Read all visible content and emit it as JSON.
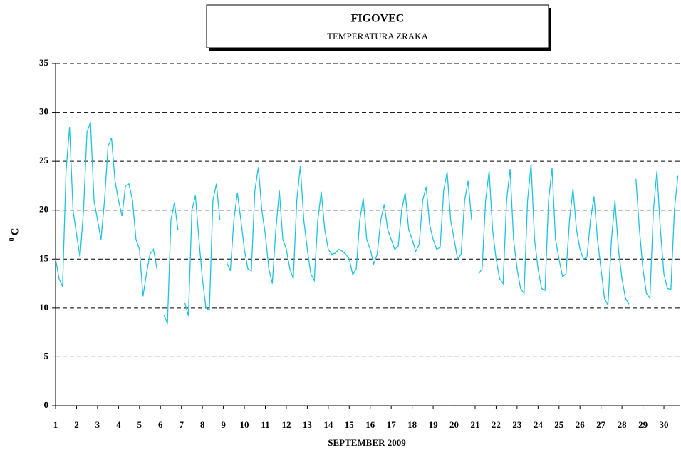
{
  "chart_data": {
    "type": "line",
    "title": "FIGOVEC",
    "subtitle": "TEMPERATURA ZRAKA",
    "ylabel_sup": "0",
    "ylabel": "C",
    "xlabel": "SEPTEMBER 2009",
    "color": "#1ec4de",
    "grid": true,
    "xlim": [
      1,
      30.78
    ],
    "ylim": [
      0,
      35
    ],
    "xticks": [
      1,
      2,
      3,
      4,
      5,
      6,
      7,
      8,
      9,
      10,
      11,
      12,
      13,
      14,
      15,
      16,
      17,
      18,
      19,
      20,
      21,
      22,
      23,
      24,
      25,
      26,
      27,
      28,
      29,
      30
    ],
    "yticks": [
      0,
      5,
      10,
      15,
      20,
      25,
      30,
      35
    ],
    "x": [
      1,
      1.167,
      1.333,
      1.5,
      1.667,
      1.833,
      2,
      2.167,
      2.333,
      2.5,
      2.667,
      2.833,
      3,
      3.167,
      3.333,
      3.5,
      3.667,
      3.833,
      4,
      4.167,
      4.333,
      4.5,
      4.667,
      4.833,
      5,
      5.167,
      5.333,
      5.5,
      5.667,
      5.833,
      6,
      6.167,
      6.333,
      6.5,
      6.667,
      6.833,
      7,
      7.167,
      7.333,
      7.5,
      7.667,
      7.833,
      8,
      8.167,
      8.333,
      8.5,
      8.667,
      8.833,
      9,
      9.167,
      9.333,
      9.5,
      9.667,
      9.833,
      10,
      10.167,
      10.333,
      10.5,
      10.667,
      10.833,
      11,
      11.167,
      11.333,
      11.5,
      11.667,
      11.833,
      12,
      12.167,
      12.333,
      12.5,
      12.667,
      12.833,
      13,
      13.167,
      13.333,
      13.5,
      13.667,
      13.833,
      14,
      14.167,
      14.333,
      14.5,
      14.667,
      14.833,
      15,
      15.167,
      15.333,
      15.5,
      15.667,
      15.833,
      16,
      16.167,
      16.333,
      16.5,
      16.667,
      16.833,
      17,
      17.167,
      17.333,
      17.5,
      17.667,
      17.833,
      18,
      18.167,
      18.333,
      18.5,
      18.667,
      18.833,
      19,
      19.167,
      19.333,
      19.5,
      19.667,
      19.833,
      20,
      20.167,
      20.333,
      20.5,
      20.667,
      20.833,
      21,
      21.167,
      21.333,
      21.5,
      21.667,
      21.833,
      22,
      22.167,
      22.333,
      22.5,
      22.667,
      22.833,
      23,
      23.167,
      23.333,
      23.5,
      23.667,
      23.833,
      24,
      24.167,
      24.333,
      24.5,
      24.667,
      24.833,
      25,
      25.167,
      25.333,
      25.5,
      25.667,
      25.833,
      26,
      26.167,
      26.333,
      26.5,
      26.667,
      26.833,
      27,
      27.167,
      27.333,
      27.5,
      27.667,
      27.833,
      28,
      28.167,
      28.333,
      28.5,
      28.667,
      28.833,
      29,
      29.167,
      29.333,
      29.5,
      29.667,
      29.833,
      30,
      30.167,
      30.333,
      30.5,
      30.667
    ],
    "values": [
      15,
      13,
      12.2,
      24,
      28.5,
      20,
      17.5,
      15.2,
      20,
      28,
      29,
      21,
      19,
      17,
      21,
      26.5,
      27.4,
      23,
      21,
      19.4,
      22.5,
      22.7,
      21,
      17,
      16,
      11.2,
      13.5,
      15.5,
      16,
      14,
      null,
      9.3,
      8.4,
      19,
      20.8,
      18,
      null,
      10.5,
      9.2,
      20,
      21.5,
      17,
      13,
      10,
      9.8,
      21,
      22.7,
      19,
      null,
      14.6,
      13.8,
      19,
      21.8,
      19,
      16,
      14,
      13.8,
      22,
      24.4,
      20,
      17.5,
      14,
      12.5,
      18,
      22,
      17,
      16,
      14,
      13,
      21,
      24.5,
      19,
      16,
      13.5,
      12.8,
      19,
      21.9,
      18,
      16,
      15.5,
      15.6,
      16,
      15.8,
      15.5,
      15,
      13.4,
      14,
      19,
      21.2,
      17,
      16,
      14.5,
      15.5,
      19,
      20.6,
      18,
      17,
      16,
      16.3,
      20,
      21.8,
      18,
      17,
      15.8,
      16.5,
      21,
      22.4,
      18.5,
      17,
      16,
      16.2,
      22,
      23.9,
      19,
      17,
      15,
      15.5,
      21,
      23,
      19,
      null,
      13.5,
      14,
      21,
      24,
      18,
      15,
      13,
      12.5,
      21,
      24.2,
      17,
      14,
      12,
      11.5,
      21,
      24.7,
      17,
      14,
      12,
      11.8,
      21,
      24.3,
      17,
      15,
      13.2,
      13.5,
      19,
      22.2,
      18,
      16,
      15,
      15.2,
      19,
      21.4,
      17,
      14,
      11,
      10.3,
      17,
      21,
      16,
      13,
      11,
      10.4,
      null,
      23.2,
      18,
      14,
      11.5,
      11,
      20,
      24,
      18,
      13.5,
      12,
      11.9,
      20,
      23.5
    ]
  }
}
